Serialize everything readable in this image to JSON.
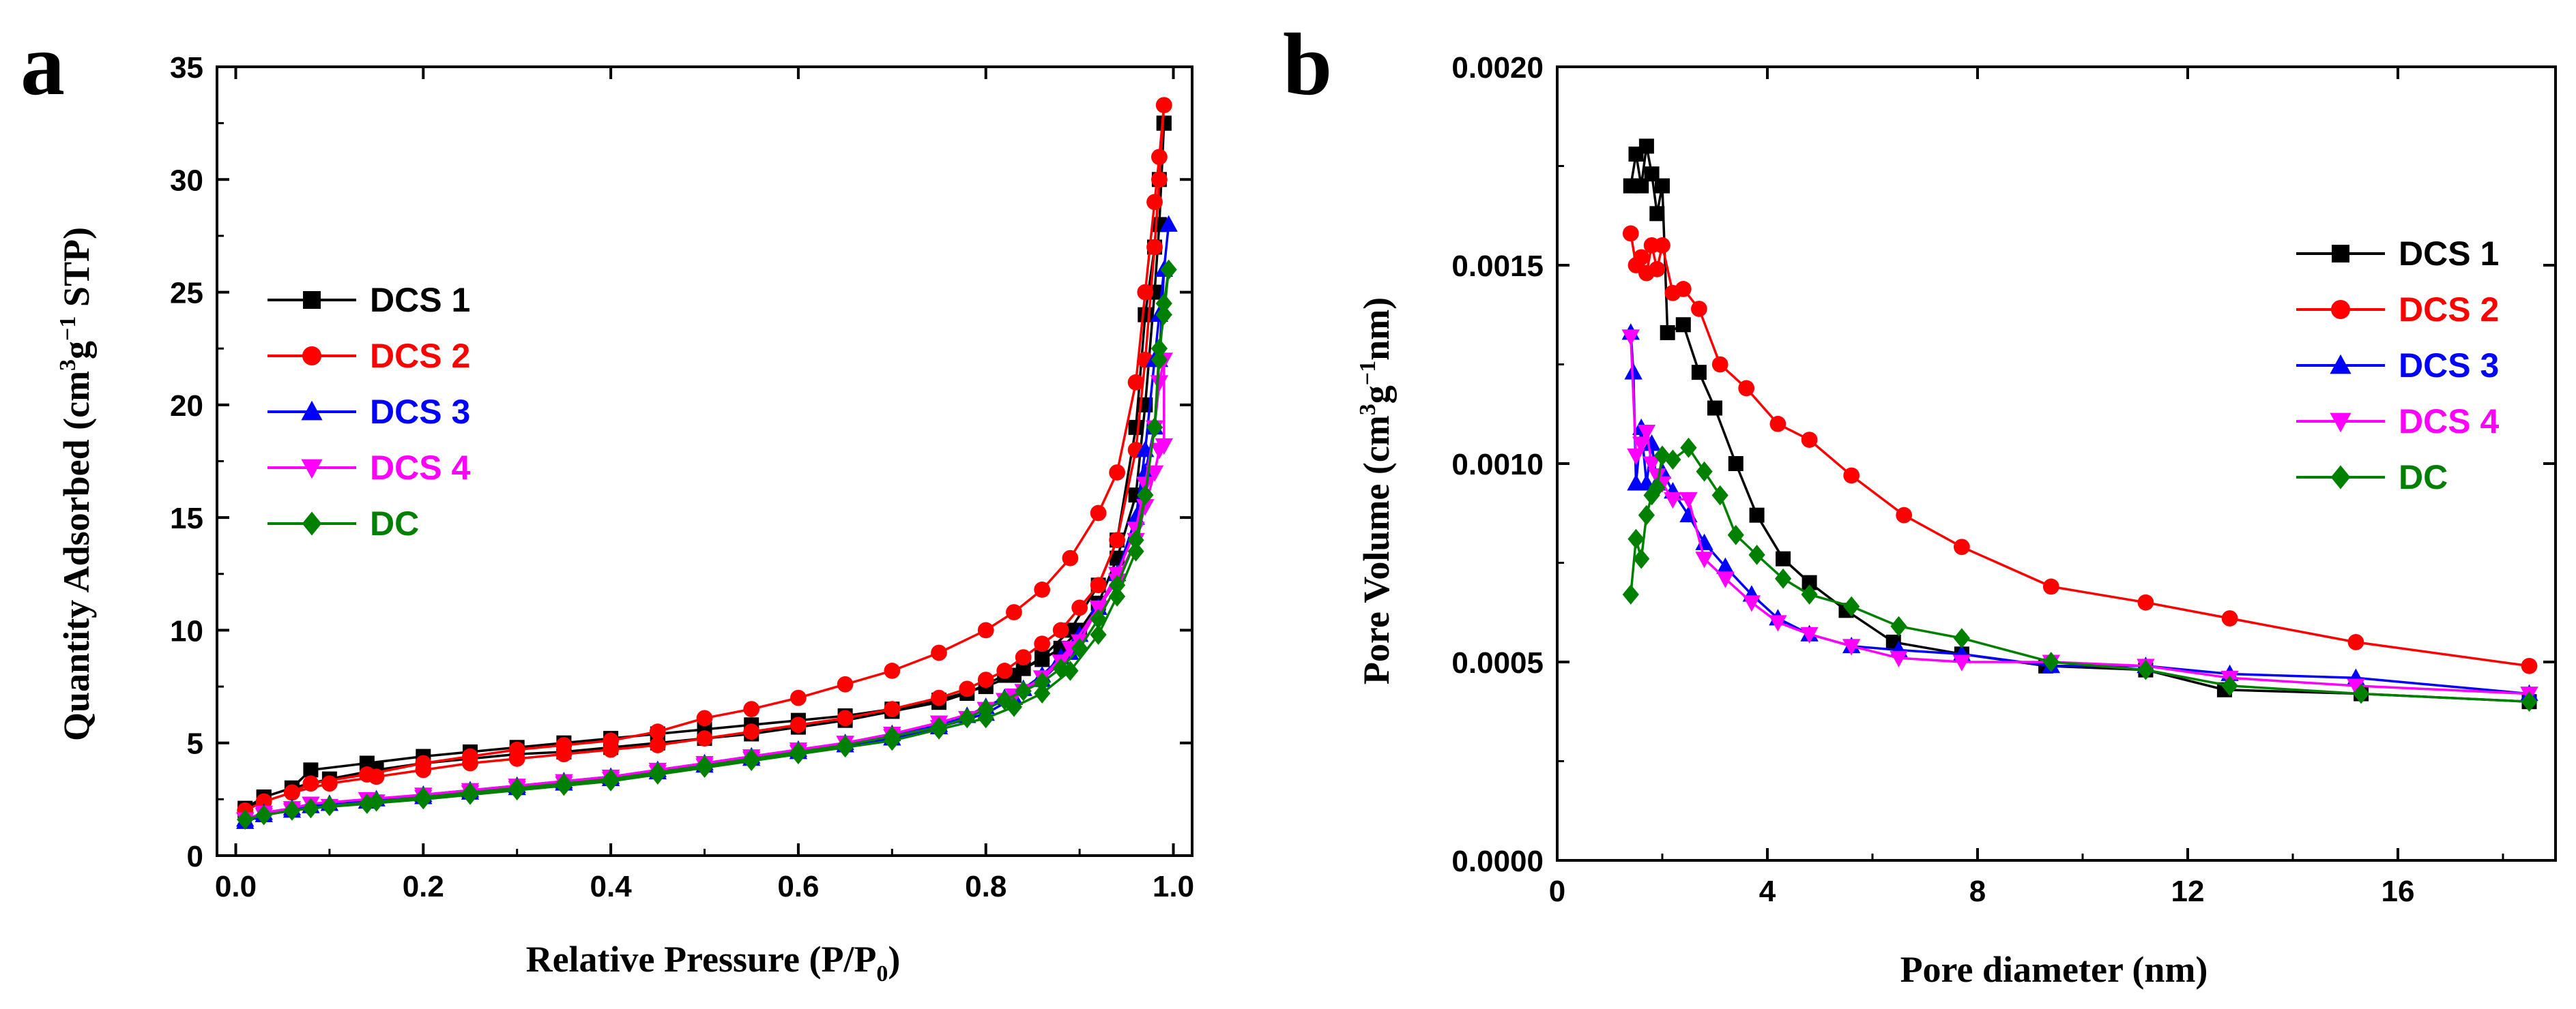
{
  "chart_data": [
    {
      "panel": "a",
      "type": "line",
      "xlabel_main": "Relative Pressure (P/P",
      "xlabel_sub": "0",
      "xlabel_end": ")",
      "ylabel": [
        "Quantity Adsorbed (cm",
        "3",
        "g",
        "−1",
        " STP)"
      ],
      "xlim": [
        -0.02,
        1.02
      ],
      "ylim": [
        0,
        35
      ],
      "xticks": [
        0.0,
        0.2,
        0.4,
        0.6,
        0.8,
        1.0
      ],
      "xtick_labels": [
        "0.0",
        "0.2",
        "0.4",
        "0.6",
        "0.8",
        "1.0"
      ],
      "yticks": [
        0,
        5,
        10,
        15,
        20,
        25,
        30,
        35
      ],
      "ytick_labels": [
        "0",
        "5",
        "10",
        "15",
        "20",
        "25",
        "30",
        "35"
      ],
      "legend_position": "middle-left",
      "series": [
        {
          "name": "DCS 1",
          "color": "#000000",
          "marker": "square",
          "x": [
            0.01,
            0.03,
            0.06,
            0.08,
            0.14,
            0.2,
            0.25,
            0.3,
            0.35,
            0.4,
            0.45,
            0.5,
            0.55,
            0.6,
            0.65,
            0.7,
            0.75,
            0.8,
            0.83,
            0.86,
            0.89,
            0.92,
            0.94,
            0.96,
            0.97,
            0.98,
            0.985,
            0.99,
            0.99,
            0.985,
            0.98,
            0.97,
            0.96,
            0.94,
            0.92,
            0.9,
            0.88,
            0.86,
            0.84,
            0.82,
            0.8,
            0.78,
            0.75,
            0.7,
            0.65,
            0.6,
            0.55,
            0.5,
            0.45,
            0.4,
            0.35,
            0.3,
            0.25,
            0.2,
            0.15,
            0.1,
            0.06,
            0.03,
            0.01
          ],
          "y": [
            2.0,
            2.6,
            3.0,
            3.8,
            4.1,
            4.4,
            4.6,
            4.8,
            5.0,
            5.2,
            5.4,
            5.6,
            5.8,
            6.0,
            6.2,
            6.5,
            6.9,
            7.5,
            8.0,
            8.8,
            10.0,
            12.0,
            14.0,
            19.0,
            24.0,
            27.0,
            30.0,
            32.5,
            32.5,
            28.0,
            25.0,
            20.0,
            16.0,
            13.2,
            11.2,
            10.0,
            9.2,
            8.7,
            8.3,
            8.0,
            7.6,
            7.2,
            6.8,
            6.4,
            6.0,
            5.7,
            5.4,
            5.2,
            5.0,
            4.8,
            4.6,
            4.5,
            4.3,
            4.1,
            3.8,
            3.4,
            3.0,
            2.6,
            2.1
          ]
        },
        {
          "name": "DCS 2",
          "color": "#ff0000",
          "marker": "circle",
          "x": [
            0.01,
            0.03,
            0.06,
            0.08,
            0.14,
            0.2,
            0.25,
            0.3,
            0.35,
            0.4,
            0.45,
            0.5,
            0.55,
            0.6,
            0.65,
            0.7,
            0.75,
            0.8,
            0.83,
            0.86,
            0.89,
            0.92,
            0.94,
            0.96,
            0.97,
            0.98,
            0.985,
            0.99,
            0.99,
            0.985,
            0.98,
            0.97,
            0.96,
            0.94,
            0.92,
            0.9,
            0.88,
            0.86,
            0.84,
            0.82,
            0.8,
            0.78,
            0.75,
            0.7,
            0.65,
            0.6,
            0.55,
            0.5,
            0.45,
            0.4,
            0.35,
            0.3,
            0.25,
            0.2,
            0.15,
            0.1,
            0.06,
            0.03,
            0.01
          ],
          "y": [
            2.0,
            2.4,
            2.8,
            3.2,
            3.6,
            4.1,
            4.4,
            4.7,
            4.9,
            5.1,
            5.5,
            6.1,
            6.5,
            7.0,
            7.6,
            8.2,
            9.0,
            10.0,
            10.8,
            11.8,
            13.2,
            15.2,
            17.0,
            21.0,
            25.0,
            29.0,
            31.0,
            33.3,
            33.3,
            30.0,
            27.0,
            22.0,
            18.0,
            14.0,
            12.0,
            11.0,
            10.0,
            9.4,
            8.8,
            8.2,
            7.8,
            7.4,
            7.0,
            6.5,
            6.1,
            5.8,
            5.5,
            5.2,
            4.9,
            4.7,
            4.5,
            4.3,
            4.1,
            3.8,
            3.5,
            3.2,
            2.8,
            2.4,
            2.0
          ]
        },
        {
          "name": "DCS 3",
          "color": "#0000ff",
          "marker": "triangle-up",
          "x": [
            0.01,
            0.03,
            0.06,
            0.08,
            0.14,
            0.2,
            0.25,
            0.3,
            0.35,
            0.4,
            0.45,
            0.5,
            0.55,
            0.6,
            0.65,
            0.7,
            0.75,
            0.8,
            0.83,
            0.86,
            0.89,
            0.92,
            0.94,
            0.96,
            0.97,
            0.98,
            0.985,
            0.99,
            0.995,
            0.99,
            0.985,
            0.98,
            0.97,
            0.96,
            0.94,
            0.92,
            0.9,
            0.88,
            0.86,
            0.84,
            0.82,
            0.8,
            0.78,
            0.75,
            0.7,
            0.65,
            0.6,
            0.55,
            0.5,
            0.45,
            0.4,
            0.35,
            0.3,
            0.25,
            0.2,
            0.15,
            0.1,
            0.06,
            0.03,
            0.01
          ],
          "y": [
            1.5,
            1.8,
            2.0,
            2.2,
            2.4,
            2.6,
            2.8,
            3.0,
            3.2,
            3.4,
            3.7,
            4.0,
            4.3,
            4.6,
            4.9,
            5.2,
            5.7,
            6.3,
            7.0,
            7.8,
            9.0,
            11.0,
            12.5,
            15.0,
            18.0,
            22.0,
            24.0,
            26.0,
            28.0,
            26.0,
            22.0,
            19.0,
            17.0,
            15.0,
            12.5,
            11.0,
            9.8,
            8.8,
            8.0,
            7.4,
            7.0,
            6.6,
            6.2,
            5.8,
            5.4,
            5.0,
            4.7,
            4.4,
            4.1,
            3.8,
            3.5,
            3.3,
            3.1,
            2.9,
            2.7,
            2.5,
            2.3,
            2.1,
            1.9,
            1.6
          ]
        },
        {
          "name": "DCS 4",
          "color": "#ff00ff",
          "marker": "triangle-down",
          "x": [
            0.01,
            0.03,
            0.06,
            0.08,
            0.14,
            0.2,
            0.25,
            0.3,
            0.35,
            0.4,
            0.45,
            0.5,
            0.55,
            0.6,
            0.65,
            0.7,
            0.75,
            0.8,
            0.83,
            0.86,
            0.89,
            0.92,
            0.94,
            0.96,
            0.97,
            0.98,
            0.985,
            0.99,
            0.99,
            0.985,
            0.98,
            0.97,
            0.96,
            0.94,
            0.92,
            0.9,
            0.88,
            0.86,
            0.84,
            0.82,
            0.8,
            0.78,
            0.75,
            0.7,
            0.65,
            0.6,
            0.55,
            0.5,
            0.45,
            0.4,
            0.35,
            0.3,
            0.25,
            0.2,
            0.15,
            0.1,
            0.06,
            0.03,
            0.01
          ],
          "y": [
            1.6,
            1.9,
            2.1,
            2.3,
            2.5,
            2.7,
            2.9,
            3.1,
            3.3,
            3.5,
            3.8,
            4.1,
            4.4,
            4.7,
            5.0,
            5.4,
            5.9,
            6.5,
            7.1,
            7.9,
            9.2,
            11.0,
            12.2,
            14.0,
            15.5,
            17.0,
            18.0,
            18.2,
            22.0,
            21.0,
            19.0,
            16.5,
            14.5,
            12.5,
            11.0,
            9.5,
            8.6,
            7.9,
            7.3,
            6.9,
            6.5,
            6.1,
            5.7,
            5.3,
            5.0,
            4.6,
            4.3,
            4.0,
            3.7,
            3.4,
            3.2,
            3.0,
            2.8,
            2.6,
            2.4,
            2.2,
            2.0,
            1.8,
            1.6
          ]
        },
        {
          "name": "DC",
          "color": "#008000",
          "marker": "diamond",
          "x": [
            0.01,
            0.03,
            0.06,
            0.08,
            0.14,
            0.2,
            0.25,
            0.3,
            0.35,
            0.4,
            0.45,
            0.5,
            0.55,
            0.6,
            0.65,
            0.7,
            0.75,
            0.8,
            0.83,
            0.86,
            0.89,
            0.92,
            0.94,
            0.96,
            0.97,
            0.98,
            0.985,
            0.99,
            0.995,
            0.99,
            0.985,
            0.98,
            0.97,
            0.96,
            0.94,
            0.92,
            0.9,
            0.88,
            0.86,
            0.84,
            0.82,
            0.8,
            0.78,
            0.75,
            0.7,
            0.65,
            0.6,
            0.55,
            0.5,
            0.45,
            0.4,
            0.35,
            0.3,
            0.25,
            0.2,
            0.15,
            0.1,
            0.06,
            0.03,
            0.01
          ],
          "y": [
            1.6,
            1.8,
            2.0,
            2.1,
            2.3,
            2.5,
            2.7,
            2.9,
            3.1,
            3.3,
            3.6,
            3.9,
            4.2,
            4.5,
            4.8,
            5.1,
            5.6,
            6.1,
            6.6,
            7.2,
            8.2,
            9.8,
            11.5,
            13.5,
            16.0,
            19.0,
            22.5,
            24.0,
            26.0,
            24.5,
            22.0,
            19.0,
            16.0,
            14.0,
            12.0,
            10.5,
            9.2,
            8.3,
            7.7,
            7.3,
            6.9,
            6.5,
            6.1,
            5.7,
            5.3,
            4.9,
            4.6,
            4.3,
            4.0,
            3.7,
            3.4,
            3.2,
            3.0,
            2.8,
            2.6,
            2.4,
            2.2,
            2.0,
            1.8,
            1.6
          ]
        }
      ]
    },
    {
      "panel": "b",
      "type": "line",
      "xlabel": "Pore diameter (nm)",
      "ylabel": [
        "Pore Volume (cm",
        "3",
        "g",
        "−1",
        "nm)"
      ],
      "xlim": [
        0,
        19
      ],
      "ylim": [
        0,
        0.002
      ],
      "xticks": [
        0,
        4,
        8,
        12,
        16
      ],
      "xtick_labels": [
        "0",
        "4",
        "8",
        "12",
        "16"
      ],
      "yticks": [
        0,
        0.0005,
        0.001,
        0.0015,
        0.002
      ],
      "ytick_labels": [
        "0.0000",
        "0.0005",
        "0.0010",
        "0.0015",
        "0.0020"
      ],
      "legend_position": "top-right",
      "series": [
        {
          "name": "DCS 1",
          "color": "#000000",
          "marker": "square",
          "x": [
            1.4,
            1.5,
            1.6,
            1.7,
            1.8,
            1.9,
            2.0,
            2.1,
            2.4,
            2.7,
            3.0,
            3.4,
            3.8,
            4.3,
            4.8,
            5.5,
            6.4,
            7.7,
            9.3,
            11.2,
            12.7,
            15.3,
            18.5
          ],
          "y": [
            0.0017,
            0.00178,
            0.0017,
            0.0018,
            0.00173,
            0.00163,
            0.0017,
            0.00133,
            0.00135,
            0.00123,
            0.00114,
            0.001,
            0.00087,
            0.00076,
            0.0007,
            0.00063,
            0.00055,
            0.00052,
            0.00049,
            0.00048,
            0.00043,
            0.00042,
            0.0004
          ]
        },
        {
          "name": "DCS 2",
          "color": "#ff0000",
          "marker": "circle",
          "x": [
            1.4,
            1.5,
            1.6,
            1.7,
            1.8,
            1.9,
            2.0,
            2.2,
            2.4,
            2.7,
            3.1,
            3.6,
            4.2,
            4.8,
            5.6,
            6.6,
            7.7,
            9.4,
            11.2,
            12.8,
            15.2,
            18.5
          ],
          "y": [
            0.00158,
            0.0015,
            0.00152,
            0.00148,
            0.00155,
            0.00149,
            0.00155,
            0.00143,
            0.00144,
            0.00139,
            0.00125,
            0.00119,
            0.0011,
            0.00106,
            0.00097,
            0.00087,
            0.00079,
            0.00069,
            0.00065,
            0.00061,
            0.00055,
            0.00049
          ]
        },
        {
          "name": "DCS 3",
          "color": "#0000ff",
          "marker": "triangle-up",
          "x": [
            1.4,
            1.45,
            1.5,
            1.6,
            1.7,
            1.8,
            1.9,
            2.0,
            2.2,
            2.5,
            2.8,
            3.2,
            3.7,
            4.2,
            4.8,
            5.6,
            6.5,
            7.7,
            9.4,
            11.2,
            12.8,
            15.2,
            18.5
          ],
          "y": [
            0.00133,
            0.00123,
            0.00095,
            0.00109,
            0.00095,
            0.00105,
            0.00095,
            0.00098,
            0.00093,
            0.00087,
            0.0008,
            0.00074,
            0.00067,
            0.00061,
            0.00057,
            0.00054,
            0.00053,
            0.00052,
            0.00049,
            0.00049,
            0.00047,
            0.00046,
            0.00042
          ]
        },
        {
          "name": "DCS 4",
          "color": "#ff00ff",
          "marker": "triangle-down",
          "x": [
            1.4,
            1.5,
            1.6,
            1.7,
            1.8,
            1.9,
            2.0,
            2.2,
            2.5,
            2.8,
            3.2,
            3.7,
            4.2,
            4.8,
            5.6,
            6.5,
            7.7,
            9.4,
            11.2,
            12.8,
            15.2,
            18.5
          ],
          "y": [
            0.00132,
            0.00102,
            0.00105,
            0.00108,
            0.001,
            0.00097,
            0.00095,
            0.00091,
            0.00091,
            0.00076,
            0.00071,
            0.00065,
            0.0006,
            0.00057,
            0.00054,
            0.00051,
            0.0005,
            0.0005,
            0.00049,
            0.00046,
            0.00044,
            0.00042
          ]
        },
        {
          "name": "DC",
          "color": "#008000",
          "marker": "diamond",
          "x": [
            1.4,
            1.5,
            1.6,
            1.7,
            1.8,
            1.9,
            2.0,
            2.2,
            2.5,
            2.8,
            3.1,
            3.4,
            3.8,
            4.3,
            4.8,
            5.6,
            6.5,
            7.7,
            9.4,
            11.2,
            12.8,
            15.3,
            18.5
          ],
          "y": [
            0.00067,
            0.00081,
            0.00076,
            0.00087,
            0.00092,
            0.00094,
            0.00102,
            0.00101,
            0.00104,
            0.00098,
            0.00092,
            0.00082,
            0.00077,
            0.00071,
            0.00067,
            0.00064,
            0.00059,
            0.00056,
            0.0005,
            0.00048,
            0.00044,
            0.00042,
            0.0004
          ]
        }
      ]
    }
  ],
  "panel_labels": {
    "a": "a",
    "b": "b"
  }
}
